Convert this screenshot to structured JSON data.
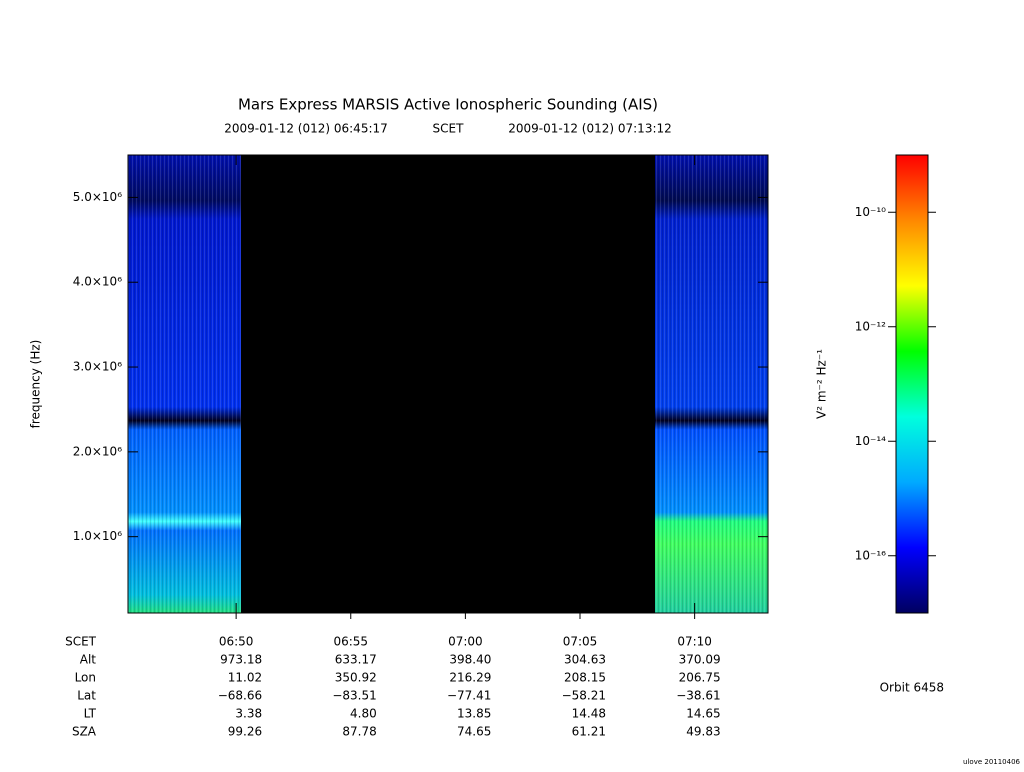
{
  "chart_data": {
    "type": "spectrogram",
    "title": "Mars Express MARSIS Active Ionospheric Sounding (AIS)",
    "start_label": "2009-01-12 (012) 06:45:17",
    "time_label": "SCET",
    "end_label": "2009-01-12 (012) 07:13:12",
    "y_label": "frequency (Hz)",
    "xlim": [
      "2009-01-12T06:45:17",
      "2009-01-12T07:13:12"
    ],
    "xticks": [
      {
        "value": "2009-01-12T06:50:00",
        "label": "06:50"
      },
      {
        "value": "2009-01-12T06:55:00",
        "label": "06:55"
      },
      {
        "value": "2009-01-12T07:00:00",
        "label": "07:00"
      },
      {
        "value": "2009-01-12T07:05:00",
        "label": "07:05"
      },
      {
        "value": "2009-01-12T07:10:00",
        "label": "07:10"
      }
    ],
    "ylim": [
      100000,
      5500000
    ],
    "yticks": [
      {
        "value": 1000000,
        "label": "1.0×10⁶"
      },
      {
        "value": 2000000,
        "label": "2.0×10⁶"
      },
      {
        "value": 3000000,
        "label": "3.0×10⁶"
      },
      {
        "value": 4000000,
        "label": "4.0×10⁶"
      },
      {
        "value": 5000000,
        "label": "5.0×10⁶"
      }
    ],
    "colorbar": {
      "label": "V² m⁻² Hz⁻¹",
      "log_scale": true,
      "lim": [
        1e-17,
        1e-09
      ],
      "ticks": [
        {
          "value": 1e-10,
          "label": "10⁻¹⁰"
        },
        {
          "value": 1e-12,
          "label": "10⁻¹²"
        },
        {
          "value": 1e-14,
          "label": "10⁻¹⁴"
        },
        {
          "value": 1e-16,
          "label": "10⁻¹⁶"
        }
      ],
      "colormap": [
        "#000060",
        "#0000ff",
        "#00aaff",
        "#00ffdd",
        "#00ff00",
        "#ffff00",
        "#ff8800",
        "#ff0000"
      ]
    },
    "ephemeris": [
      {
        "label": "Alt",
        "values": [
          "973.18",
          "633.17",
          "398.40",
          "304.63",
          "370.09"
        ]
      },
      {
        "label": "Lon",
        "values": [
          "11.02",
          "350.92",
          "216.29",
          "208.15",
          "206.75"
        ]
      },
      {
        "label": "Lat",
        "values": [
          "−68.66",
          "−83.51",
          "−77.41",
          "−58.21",
          "−38.61"
        ]
      },
      {
        "label": "LT",
        "values": [
          "3.38",
          "4.80",
          "13.85",
          "14.48",
          "14.65"
        ]
      },
      {
        "label": "SZA",
        "values": [
          "99.26",
          "87.78",
          "74.65",
          "61.21",
          "49.83"
        ]
      }
    ],
    "orbit": "Orbit 6458",
    "credit": "ulove 20110406"
  }
}
